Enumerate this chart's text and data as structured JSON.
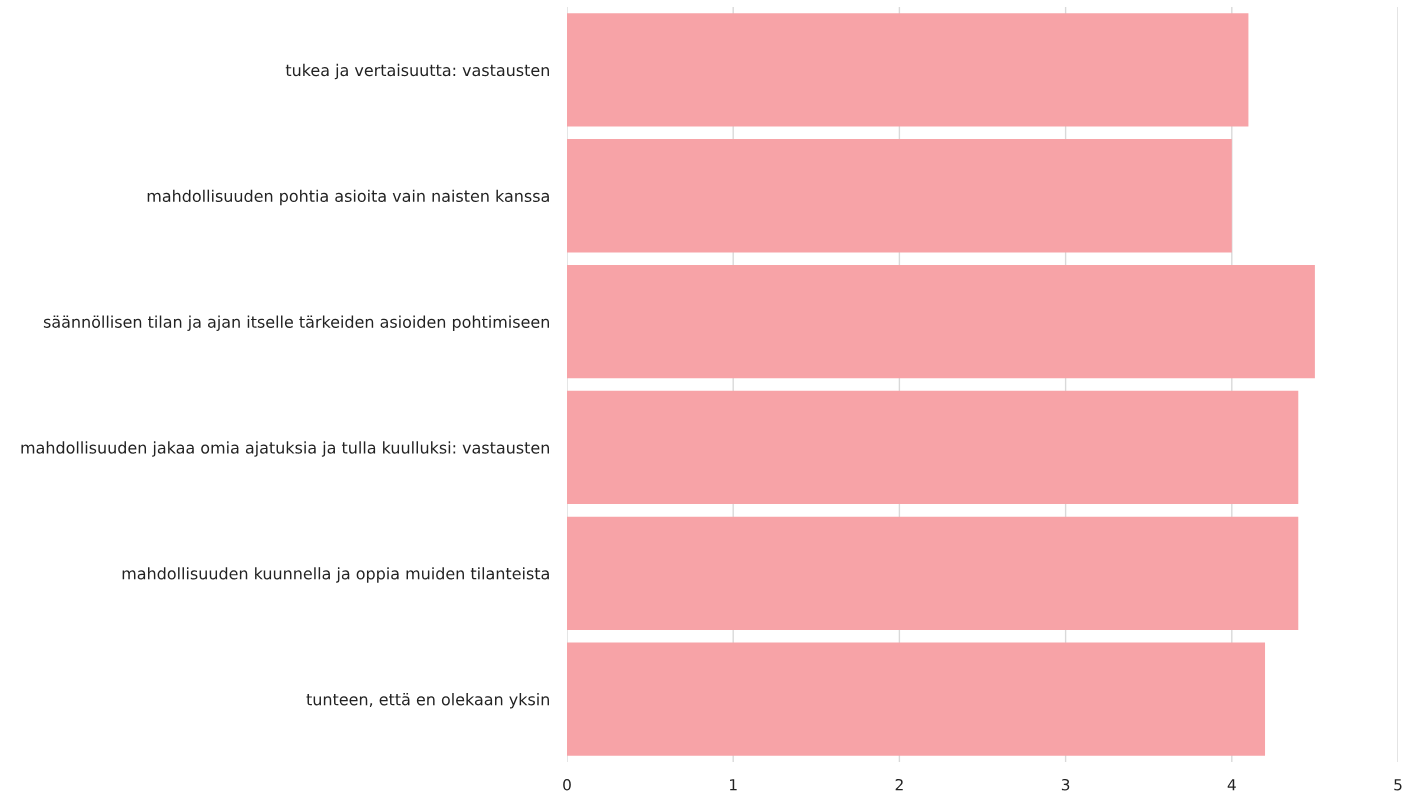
{
  "chart_data": {
    "type": "bar",
    "orientation": "horizontal",
    "categories": [
      "tukea ja vertaisuutta: vastausten",
      "mahdollisuuden pohtia asioita vain naisten kanssa",
      "säännöllisen tilan ja ajan itselle tärkeiden asioiden pohtimiseen",
      "mahdollisuuden jakaa omia ajatuksia ja tulla kuulluksi: vastausten",
      "mahdollisuuden kuunnella ja oppia muiden tilanteista",
      "tunteen, että en olekaan yksin"
    ],
    "values": [
      4.1,
      4.0,
      4.5,
      4.4,
      4.4,
      4.2
    ],
    "color": "#f7a3a7",
    "xlim": [
      0,
      5
    ],
    "xticks": [
      0,
      1,
      2,
      3,
      4,
      5
    ],
    "grid": "x"
  }
}
